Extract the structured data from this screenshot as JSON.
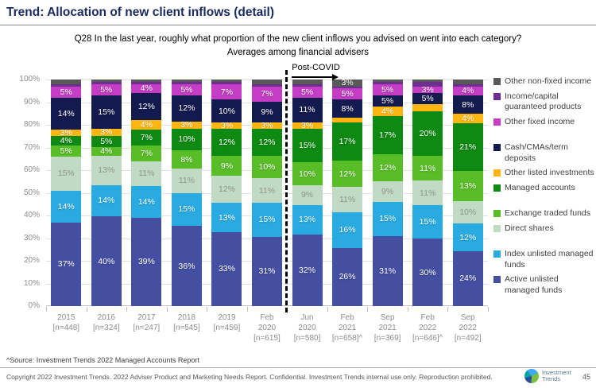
{
  "header": {
    "title": "Trend: Allocation of new client inflows (detail)"
  },
  "subtitle": {
    "lines": [
      "Q28 In the last year, roughly what proportion of the new client inflows you advised on went into each category?",
      "Averages among financial advisers"
    ]
  },
  "annotation": {
    "post_covid_label": "Post-COVID"
  },
  "chart_data": {
    "type": "bar",
    "stacked": true,
    "title": "Allocation of new client inflows (detail)",
    "xlabel": "",
    "ylabel": "",
    "ylim": [
      0,
      100
    ],
    "ytick_step": 10,
    "ytick_suffix": "%",
    "grid": true,
    "legend_position": "right",
    "post_covid_divider_after_category_index": 5,
    "categories": [
      [
        "2015",
        "[n=448]"
      ],
      [
        "2016",
        "[n=324]"
      ],
      [
        "2017",
        "[n=247]"
      ],
      [
        "2018",
        "[n=545]"
      ],
      [
        "2019",
        "[n=459]"
      ],
      [
        "Feb",
        "2020",
        "[n=615]"
      ],
      [
        "Jun",
        "2020",
        "[n=580]"
      ],
      [
        "Feb",
        "2021",
        "[n=658]^"
      ],
      [
        "Sep",
        "2021",
        "[n=369]"
      ],
      [
        "Feb",
        "2022",
        "[n=646]^"
      ],
      [
        "Sep",
        "2022",
        "[n=492]"
      ]
    ],
    "series_bottom_to_top": [
      {
        "name": "Active unlisted managed funds",
        "color": "#444FA2",
        "label_color": "#FFFFFF",
        "values": [
          37,
          40,
          39,
          36,
          33,
          31,
          32,
          26,
          31,
          30,
          24
        ],
        "labels": [
          "37%",
          "40%",
          "39%",
          "36%",
          "33%",
          "31%",
          "32%",
          "26%",
          "31%",
          "30%",
          "24%"
        ]
      },
      {
        "name": "Index unlisted managed funds",
        "color": "#29ABE2",
        "label_color": "#FFFFFF",
        "values": [
          14,
          14,
          14,
          15,
          13,
          15,
          13,
          16,
          15,
          15,
          12
        ],
        "labels": [
          "14%",
          "14%",
          "14%",
          "15%",
          "13%",
          "15%",
          "13%",
          "16%",
          "15%",
          "15%",
          "12%"
        ]
      },
      {
        "name": "Direct shares",
        "color": "#C1DAC3",
        "label_color": "#8C9687",
        "values": [
          15,
          13,
          11,
          11,
          12,
          11,
          9,
          11,
          9,
          11,
          10
        ],
        "labels": [
          "15%",
          "13%",
          "11%",
          "11%",
          "12%",
          "11%",
          "9%",
          "11%",
          "9%",
          "11%",
          "10%"
        ]
      },
      {
        "name": "Exchange traded funds",
        "color": "#59BD27",
        "label_color": "#FFFFFF",
        "values": [
          5,
          4,
          7,
          8,
          9,
          10,
          10,
          12,
          12,
          11,
          13
        ],
        "labels": [
          "5%",
          "4%",
          "7%",
          "8%",
          "9%",
          "10%",
          "10%",
          "12%",
          "12%",
          "11%",
          "13%"
        ]
      },
      {
        "name": "Managed accounts",
        "color": "#0E8912",
        "label_color": "#FFFFFF",
        "values": [
          4,
          5,
          7,
          10,
          12,
          12,
          15,
          17,
          17,
          20,
          21
        ],
        "labels": [
          "4%",
          "5%",
          "7%",
          "10%",
          "12%",
          "12%",
          "15%",
          "17%",
          "17%",
          "20%",
          "21%"
        ]
      },
      {
        "name": "Other listed investments",
        "color": "#FFB612",
        "label_color": "#FFFFFF",
        "values": [
          3,
          3,
          4,
          3,
          3,
          3,
          3,
          2,
          4,
          3,
          4
        ],
        "labels": [
          "3%",
          "3%",
          "4%",
          "3%",
          "3%",
          "3%",
          "3%",
          null,
          "4%",
          null,
          "4%"
        ]
      },
      {
        "name": "Cash/CMAs/term deposits",
        "color": "#131A4E",
        "label_color": "#FFFFFF",
        "values": [
          14,
          15,
          12,
          12,
          10,
          9,
          11,
          8,
          5,
          5,
          8
        ],
        "labels": [
          "14%",
          "15%",
          "12%",
          "12%",
          "10%",
          "9%",
          "11%",
          "8%",
          "5%",
          "5%",
          "8%"
        ]
      },
      {
        "name": "Other fixed income",
        "color": "#C43DC4",
        "label_color": "#FFFFFF",
        "values": [
          5,
          5,
          4,
          5,
          7,
          7,
          5,
          5,
          5,
          3,
          4
        ],
        "labels": [
          "5%",
          "5%",
          "4%",
          "5%",
          "7%",
          "7%",
          "5%",
          "5%",
          "5%",
          "3%",
          "4%"
        ]
      },
      {
        "name": "Income/capital guaranteed products",
        "color": "#6E2D91",
        "label_color": "#FFFFFF",
        "values": [
          1,
          1,
          1,
          1,
          1,
          1,
          1,
          1,
          1,
          2,
          1
        ],
        "labels": [
          null,
          null,
          null,
          null,
          null,
          null,
          null,
          null,
          null,
          null,
          null
        ]
      },
      {
        "name": "Other non-fixed income",
        "color": "#595959",
        "label_color": "#FFFFFF",
        "values": [
          2,
          1,
          1,
          1,
          1,
          2,
          2,
          3,
          1,
          1,
          2
        ],
        "labels": [
          null,
          null,
          null,
          null,
          null,
          null,
          null,
          "3%",
          null,
          null,
          null
        ]
      }
    ],
    "legend_top_to_bottom": [
      {
        "label": "Other non-fixed income",
        "color": "#595959",
        "gap_before": false
      },
      {
        "label": "Income/capital guaranteed products",
        "color": "#6E2D91",
        "gap_before": false
      },
      {
        "label": "Other fixed income",
        "color": "#C43DC4",
        "gap_before": false
      },
      {
        "label": "Cash/CMAs/term deposits",
        "color": "#131A4E",
        "gap_before": true
      },
      {
        "label": "Other listed investments",
        "color": "#FFB612",
        "gap_before": false
      },
      {
        "label": "Managed accounts",
        "color": "#0E8912",
        "gap_before": false
      },
      {
        "label": "Exchange traded funds",
        "color": "#59BD27",
        "gap_before": true
      },
      {
        "label": "Direct shares",
        "color": "#C1DAC3",
        "gap_before": false
      },
      {
        "label": "Index unlisted managed funds",
        "color": "#29ABE2",
        "gap_before": true
      },
      {
        "label": "Active unlisted managed funds",
        "color": "#444FA2",
        "gap_before": false
      }
    ]
  },
  "footer": {
    "source_note": "^Source: Investment Trends 2022 Managed Accounts Report",
    "copyright": "Copyright 2022 Investment Trends. 2022 Adviser Product and Marketing Needs Report. Confidential. Investment Trends internal use only. Reproduction prohibited.",
    "logo_line1": "Investment",
    "logo_line2": "Trends",
    "page_number": "45"
  }
}
